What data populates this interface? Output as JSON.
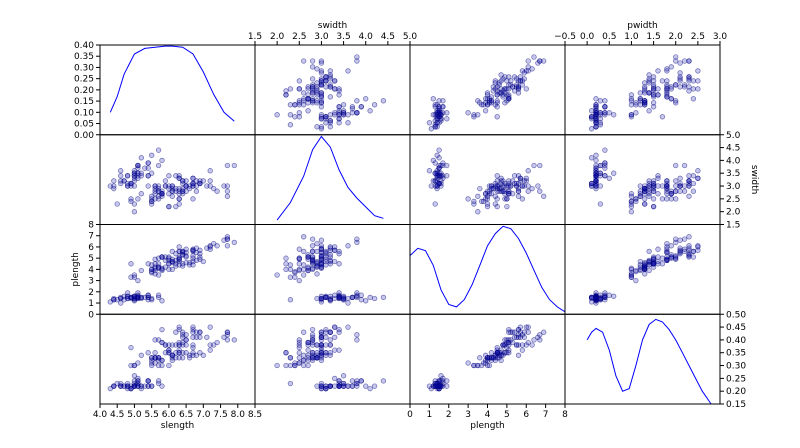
{
  "chart_data": {
    "type": "scatter",
    "title": "",
    "variables": [
      "slength",
      "swidth",
      "plength",
      "pwidth"
    ],
    "top_axis_labels": [
      "swidth",
      "pwidth"
    ],
    "bottom_axis_labels": [
      "slength",
      "plength"
    ],
    "left_axis_labels": [
      "plength"
    ],
    "right_axis_labels": [
      "swidth"
    ],
    "limits": {
      "slength": [
        4.0,
        8.5
      ],
      "swidth": [
        1.5,
        5.0
      ],
      "plength": [
        0,
        8
      ],
      "pwidth": [
        -0.5,
        3.0
      ]
    },
    "ticks": {
      "slength": [
        "4.0",
        "4.5",
        "5.0",
        "5.5",
        "6.0",
        "6.5",
        "7.0",
        "7.5",
        "8.0",
        "8.5"
      ],
      "swidth": [
        "1.5",
        "2.0",
        "2.5",
        "3.0",
        "3.5",
        "4.0",
        "4.5",
        "5.0"
      ],
      "plength": [
        "0",
        "1",
        "2",
        "3",
        "4",
        "5",
        "6",
        "7",
        "8"
      ],
      "pwidth": [
        "−0.5",
        "0.0",
        "0.5",
        "1.0",
        "1.5",
        "2.0",
        "2.5",
        "3.0"
      ]
    },
    "diagonal_density": {
      "slength": {
        "ylim": [
          0.0,
          0.4
        ],
        "yticks": [
          "0.00",
          "0.05",
          "0.10",
          "0.15",
          "0.20",
          "0.25",
          "0.30",
          "0.35",
          "0.40"
        ],
        "x": [
          4.3,
          4.5,
          4.7,
          5.0,
          5.3,
          5.6,
          5.9,
          6.1,
          6.4,
          6.7,
          7.0,
          7.3,
          7.6,
          7.9
        ],
        "y": [
          0.1,
          0.17,
          0.27,
          0.36,
          0.385,
          0.39,
          0.395,
          0.395,
          0.39,
          0.36,
          0.28,
          0.18,
          0.1,
          0.06
        ]
      },
      "swidth": {
        "x": [
          2.0,
          2.3,
          2.6,
          2.8,
          3.0,
          3.2,
          3.4,
          3.6,
          3.8,
          4.0,
          4.2,
          4.4
        ],
        "y": [
          0.05,
          0.25,
          0.55,
          0.85,
          1.0,
          0.88,
          0.62,
          0.42,
          0.3,
          0.2,
          0.1,
          0.07
        ]
      },
      "plength": {
        "x": [
          0.0,
          0.4,
          0.8,
          1.2,
          1.6,
          2.0,
          2.4,
          2.8,
          3.2,
          3.6,
          4.0,
          4.4,
          4.8,
          5.2,
          5.6,
          6.0,
          6.4,
          6.8,
          7.2,
          7.6,
          8.0
        ],
        "y": [
          0.24,
          0.27,
          0.26,
          0.2,
          0.1,
          0.04,
          0.03,
          0.06,
          0.12,
          0.2,
          0.28,
          0.33,
          0.36,
          0.35,
          0.31,
          0.25,
          0.18,
          0.11,
          0.06,
          0.03,
          0.01
        ]
      },
      "pwidth": {
        "ylim": [
          0.15,
          0.5
        ],
        "yticks": [
          "0.15",
          "0.20",
          "0.25",
          "0.30",
          "0.35",
          "0.40",
          "0.45",
          "0.50"
        ],
        "x": [
          0.0,
          0.1,
          0.2,
          0.35,
          0.5,
          0.65,
          0.8,
          0.95,
          1.1,
          1.25,
          1.4,
          1.55,
          1.7,
          1.85,
          2.0,
          2.15,
          2.3,
          2.45,
          2.6,
          2.8
        ],
        "y": [
          0.4,
          0.43,
          0.445,
          0.43,
          0.36,
          0.26,
          0.2,
          0.21,
          0.3,
          0.4,
          0.46,
          0.48,
          0.47,
          0.44,
          0.4,
          0.35,
          0.3,
          0.25,
          0.2,
          0.15
        ]
      }
    },
    "samples": [
      [
        5.1,
        3.5,
        1.4,
        0.2
      ],
      [
        4.9,
        3.0,
        1.4,
        0.2
      ],
      [
        4.7,
        3.2,
        1.3,
        0.2
      ],
      [
        4.6,
        3.1,
        1.5,
        0.2
      ],
      [
        5.0,
        3.6,
        1.4,
        0.2
      ],
      [
        5.4,
        3.9,
        1.7,
        0.4
      ],
      [
        4.6,
        3.4,
        1.4,
        0.3
      ],
      [
        5.0,
        3.4,
        1.5,
        0.2
      ],
      [
        4.4,
        2.9,
        1.4,
        0.2
      ],
      [
        4.9,
        3.1,
        1.5,
        0.1
      ],
      [
        5.4,
        3.7,
        1.5,
        0.2
      ],
      [
        4.8,
        3.4,
        1.6,
        0.2
      ],
      [
        4.8,
        3.0,
        1.4,
        0.1
      ],
      [
        4.3,
        3.0,
        1.1,
        0.1
      ],
      [
        5.8,
        4.0,
        1.2,
        0.2
      ],
      [
        5.7,
        4.4,
        1.5,
        0.4
      ],
      [
        5.4,
        3.9,
        1.3,
        0.4
      ],
      [
        5.1,
        3.5,
        1.4,
        0.3
      ],
      [
        5.7,
        3.8,
        1.7,
        0.3
      ],
      [
        5.1,
        3.8,
        1.5,
        0.3
      ],
      [
        5.4,
        3.4,
        1.7,
        0.2
      ],
      [
        5.1,
        3.7,
        1.5,
        0.4
      ],
      [
        4.6,
        3.6,
        1.0,
        0.2
      ],
      [
        5.1,
        3.3,
        1.7,
        0.5
      ],
      [
        4.8,
        3.4,
        1.9,
        0.2
      ],
      [
        5.0,
        3.0,
        1.6,
        0.2
      ],
      [
        5.0,
        3.4,
        1.6,
        0.4
      ],
      [
        5.2,
        3.5,
        1.5,
        0.2
      ],
      [
        5.2,
        3.4,
        1.4,
        0.2
      ],
      [
        4.7,
        3.2,
        1.6,
        0.2
      ],
      [
        4.8,
        3.1,
        1.6,
        0.2
      ],
      [
        5.4,
        3.4,
        1.5,
        0.4
      ],
      [
        5.2,
        4.1,
        1.5,
        0.1
      ],
      [
        5.5,
        4.2,
        1.4,
        0.2
      ],
      [
        4.9,
        3.1,
        1.5,
        0.1
      ],
      [
        5.0,
        3.2,
        1.2,
        0.2
      ],
      [
        5.5,
        3.5,
        1.3,
        0.2
      ],
      [
        4.9,
        3.1,
        1.5,
        0.1
      ],
      [
        4.4,
        3.0,
        1.3,
        0.2
      ],
      [
        5.1,
        3.4,
        1.5,
        0.2
      ],
      [
        5.0,
        3.5,
        1.3,
        0.3
      ],
      [
        4.5,
        2.3,
        1.3,
        0.3
      ],
      [
        4.4,
        3.2,
        1.3,
        0.2
      ],
      [
        5.0,
        3.5,
        1.6,
        0.6
      ],
      [
        5.1,
        3.8,
        1.9,
        0.4
      ],
      [
        4.8,
        3.0,
        1.4,
        0.3
      ],
      [
        5.1,
        3.8,
        1.6,
        0.2
      ],
      [
        4.6,
        3.2,
        1.4,
        0.2
      ],
      [
        5.3,
        3.7,
        1.5,
        0.2
      ],
      [
        5.0,
        3.3,
        1.4,
        0.2
      ],
      [
        7.0,
        3.2,
        4.7,
        1.4
      ],
      [
        6.4,
        3.2,
        4.5,
        1.5
      ],
      [
        6.9,
        3.1,
        4.9,
        1.5
      ],
      [
        5.5,
        2.3,
        4.0,
        1.3
      ],
      [
        6.5,
        2.8,
        4.6,
        1.5
      ],
      [
        5.7,
        2.8,
        4.5,
        1.3
      ],
      [
        6.3,
        3.3,
        4.7,
        1.6
      ],
      [
        4.9,
        2.4,
        3.3,
        1.0
      ],
      [
        6.6,
        2.9,
        4.6,
        1.3
      ],
      [
        5.2,
        2.7,
        3.9,
        1.4
      ],
      [
        5.0,
        2.0,
        3.5,
        1.0
      ],
      [
        5.9,
        3.0,
        4.2,
        1.5
      ],
      [
        6.0,
        2.2,
        4.0,
        1.0
      ],
      [
        6.1,
        2.9,
        4.7,
        1.4
      ],
      [
        5.6,
        2.9,
        3.6,
        1.3
      ],
      [
        6.7,
        3.1,
        4.4,
        1.4
      ],
      [
        5.6,
        3.0,
        4.5,
        1.5
      ],
      [
        5.8,
        2.7,
        4.1,
        1.0
      ],
      [
        6.2,
        2.2,
        4.5,
        1.5
      ],
      [
        5.6,
        2.5,
        3.9,
        1.1
      ],
      [
        5.9,
        3.2,
        4.8,
        1.8
      ],
      [
        6.1,
        2.8,
        4.0,
        1.3
      ],
      [
        6.3,
        2.5,
        4.9,
        1.5
      ],
      [
        6.1,
        2.8,
        4.7,
        1.2
      ],
      [
        6.4,
        2.9,
        4.3,
        1.3
      ],
      [
        6.6,
        3.0,
        4.4,
        1.4
      ],
      [
        6.8,
        2.8,
        4.8,
        1.4
      ],
      [
        6.7,
        3.0,
        5.0,
        1.7
      ],
      [
        6.0,
        2.9,
        4.5,
        1.5
      ],
      [
        5.7,
        2.6,
        3.5,
        1.0
      ],
      [
        5.5,
        2.4,
        3.8,
        1.1
      ],
      [
        5.5,
        2.4,
        3.7,
        1.0
      ],
      [
        5.8,
        2.7,
        3.9,
        1.2
      ],
      [
        6.0,
        2.7,
        5.1,
        1.6
      ],
      [
        5.4,
        3.0,
        4.5,
        1.5
      ],
      [
        6.0,
        3.4,
        4.5,
        1.6
      ],
      [
        6.7,
        3.1,
        4.7,
        1.5
      ],
      [
        6.3,
        2.3,
        4.4,
        1.3
      ],
      [
        5.6,
        3.0,
        4.1,
        1.3
      ],
      [
        5.5,
        2.5,
        4.0,
        1.3
      ],
      [
        5.5,
        2.6,
        4.4,
        1.2
      ],
      [
        6.1,
        3.0,
        4.6,
        1.4
      ],
      [
        5.8,
        2.6,
        4.0,
        1.2
      ],
      [
        5.0,
        2.3,
        3.3,
        1.0
      ],
      [
        5.6,
        2.7,
        4.2,
        1.3
      ],
      [
        5.7,
        3.0,
        4.2,
        1.2
      ],
      [
        5.7,
        2.9,
        4.2,
        1.3
      ],
      [
        6.2,
        2.9,
        4.3,
        1.3
      ],
      [
        5.1,
        2.5,
        3.0,
        1.1
      ],
      [
        5.7,
        2.8,
        4.1,
        1.3
      ],
      [
        6.3,
        3.3,
        6.0,
        2.5
      ],
      [
        5.8,
        2.7,
        5.1,
        1.9
      ],
      [
        7.1,
        3.0,
        5.9,
        2.1
      ],
      [
        6.3,
        2.9,
        5.6,
        1.8
      ],
      [
        6.5,
        3.0,
        5.8,
        2.2
      ],
      [
        7.6,
        3.0,
        6.6,
        2.1
      ],
      [
        4.9,
        2.5,
        4.5,
        1.7
      ],
      [
        7.3,
        2.9,
        6.3,
        1.8
      ],
      [
        6.7,
        2.5,
        5.8,
        1.8
      ],
      [
        7.2,
        3.6,
        6.1,
        2.5
      ],
      [
        6.5,
        3.2,
        5.1,
        2.0
      ],
      [
        6.4,
        2.7,
        5.3,
        1.9
      ],
      [
        6.8,
        3.0,
        5.5,
        2.1
      ],
      [
        5.7,
        2.5,
        5.0,
        2.0
      ],
      [
        5.8,
        2.8,
        5.1,
        2.4
      ],
      [
        6.4,
        3.2,
        5.3,
        2.3
      ],
      [
        6.5,
        3.0,
        5.5,
        1.8
      ],
      [
        7.7,
        3.8,
        6.7,
        2.2
      ],
      [
        7.7,
        2.6,
        6.9,
        2.3
      ],
      [
        6.0,
        2.2,
        5.0,
        1.5
      ],
      [
        6.9,
        3.2,
        5.7,
        2.3
      ],
      [
        5.6,
        2.8,
        4.9,
        2.0
      ],
      [
        7.7,
        2.8,
        6.7,
        2.0
      ],
      [
        6.3,
        2.7,
        4.9,
        1.8
      ],
      [
        6.7,
        3.3,
        5.7,
        2.1
      ],
      [
        7.2,
        3.2,
        6.0,
        1.8
      ],
      [
        6.2,
        2.8,
        4.8,
        1.8
      ],
      [
        6.1,
        3.0,
        4.9,
        1.8
      ],
      [
        6.4,
        2.8,
        5.6,
        2.1
      ],
      [
        7.2,
        3.0,
        5.8,
        1.6
      ],
      [
        7.4,
        2.8,
        6.1,
        1.9
      ],
      [
        7.9,
        3.8,
        6.4,
        2.0
      ],
      [
        6.4,
        2.8,
        5.6,
        2.2
      ],
      [
        6.3,
        2.8,
        5.1,
        1.5
      ],
      [
        6.1,
        2.6,
        5.6,
        1.4
      ],
      [
        7.7,
        3.0,
        6.1,
        2.3
      ],
      [
        6.3,
        3.4,
        5.6,
        2.4
      ],
      [
        6.4,
        3.1,
        5.5,
        1.8
      ],
      [
        6.0,
        3.0,
        4.8,
        1.8
      ],
      [
        6.9,
        3.1,
        5.4,
        2.1
      ],
      [
        6.7,
        3.1,
        5.6,
        2.4
      ],
      [
        6.9,
        3.1,
        5.1,
        2.3
      ],
      [
        5.8,
        2.7,
        5.1,
        1.9
      ],
      [
        6.8,
        3.2,
        5.9,
        2.3
      ],
      [
        6.7,
        3.3,
        5.7,
        2.5
      ],
      [
        6.7,
        3.0,
        5.2,
        2.3
      ],
      [
        6.3,
        2.5,
        5.0,
        1.9
      ],
      [
        6.5,
        3.0,
        5.2,
        2.0
      ],
      [
        6.2,
        3.4,
        5.4,
        2.3
      ],
      [
        5.9,
        3.0,
        5.1,
        1.8
      ]
    ]
  }
}
